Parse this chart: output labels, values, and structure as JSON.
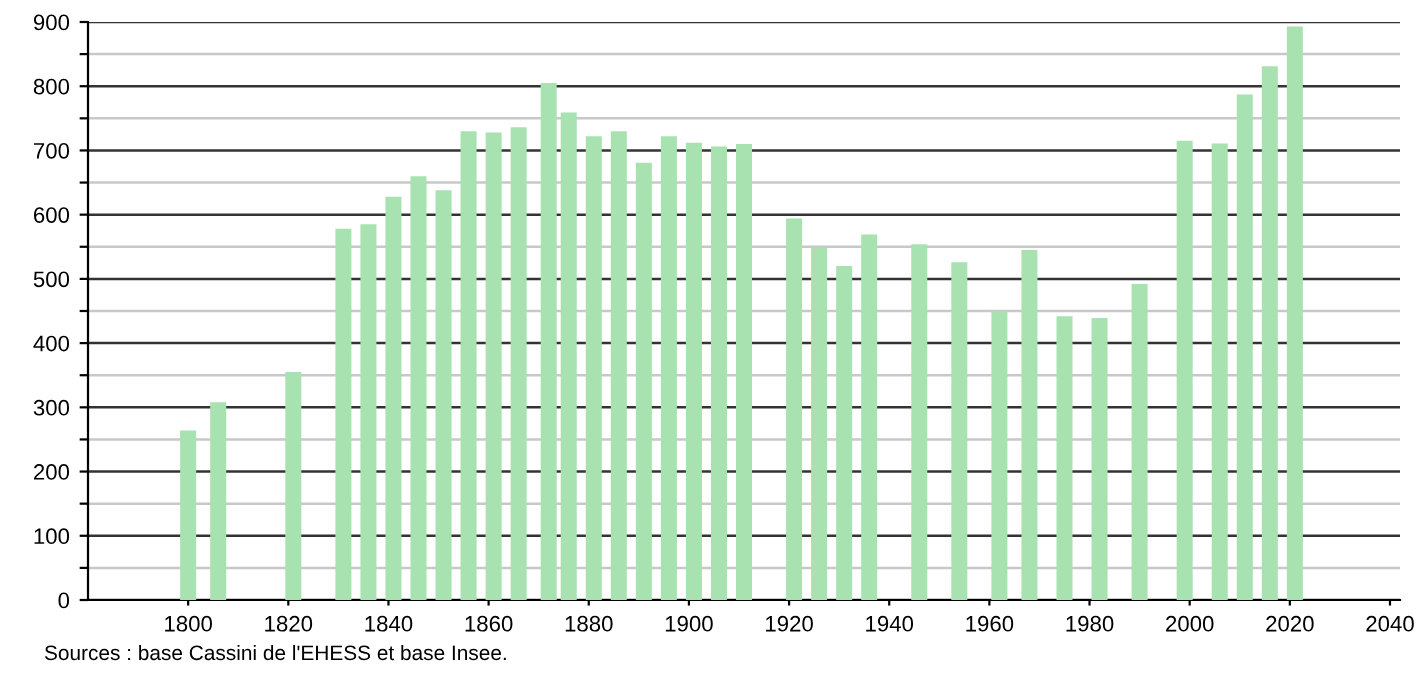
{
  "chart_data": {
    "type": "bar",
    "x": [
      1800,
      1806,
      1821,
      1831,
      1836,
      1841,
      1846,
      1851,
      1856,
      1861,
      1866,
      1872,
      1876,
      1881,
      1886,
      1891,
      1896,
      1901,
      1906,
      1911,
      1921,
      1926,
      1931,
      1936,
      1946,
      1954,
      1962,
      1968,
      1975,
      1982,
      1990,
      1999,
      2006,
      2011,
      2016,
      2021
    ],
    "values": [
      264,
      308,
      355,
      578,
      585,
      628,
      660,
      638,
      730,
      728,
      736,
      805,
      759,
      722,
      730,
      681,
      722,
      712,
      706,
      710,
      594,
      549,
      520,
      569,
      554,
      526,
      450,
      545,
      442,
      439,
      492,
      715,
      711,
      787,
      831,
      893
    ],
    "color": "#a8e2b0",
    "xlim": [
      1780,
      2042
    ],
    "xticks": [
      1800,
      1820,
      1840,
      1860,
      1880,
      1900,
      1920,
      1940,
      1960,
      1980,
      2000,
      2020,
      2040
    ],
    "ylim": [
      0,
      900
    ],
    "yticks": [
      0,
      {
        "value": 50,
        "label": null
      },
      100,
      {
        "value": 150,
        "label": null
      },
      200,
      {
        "value": 250,
        "label": null
      },
      300,
      {
        "value": 350,
        "label": null
      },
      400,
      {
        "value": 450,
        "label": null
      },
      500,
      {
        "value": 550,
        "label": null
      },
      600,
      {
        "value": 650,
        "label": null
      },
      700,
      {
        "value": 750,
        "label": null
      },
      800,
      {
        "value": 850,
        "label": null
      },
      900
    ],
    "grid": "y",
    "annotations": [
      "Sources : base Cassini de l'EHESS et base Insee."
    ]
  }
}
